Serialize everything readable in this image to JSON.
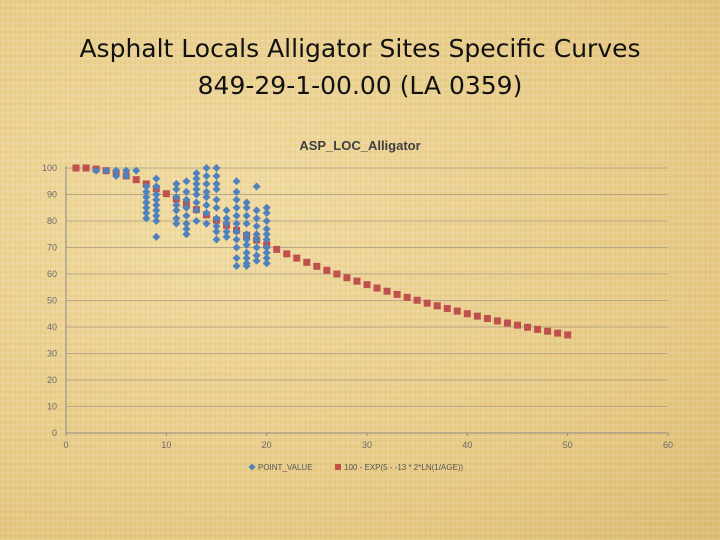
{
  "slide": {
    "title_line1": "Asphalt Locals Alligator Sites Specific Curves",
    "title_line2": "849-29-1-00.00 (LA 0359)"
  },
  "colors": {
    "point_value": "#4f81bd",
    "curve": "#c0504d",
    "grid": "#b9a888",
    "axis": "#8c8c8c"
  },
  "chart_data": {
    "type": "scatter",
    "title": "ASP_LOC_Alligator",
    "xlim": [
      0,
      60
    ],
    "ylim": [
      0,
      100
    ],
    "x_ticks": [
      0,
      10,
      20,
      30,
      40,
      50,
      60
    ],
    "y_ticks": [
      0,
      10,
      20,
      30,
      40,
      50,
      60,
      70,
      80,
      90,
      100
    ],
    "grid": true,
    "legend_position": "bottom",
    "series": [
      {
        "name": "POINT_VALUE",
        "marker": "diamond",
        "points": [
          [
            3,
            99
          ],
          [
            4,
            99
          ],
          [
            5,
            99
          ],
          [
            6,
            99
          ],
          [
            7,
            99
          ],
          [
            5,
            97
          ],
          [
            6,
            97
          ],
          [
            8,
            93
          ],
          [
            8,
            91
          ],
          [
            8,
            89
          ],
          [
            8,
            87
          ],
          [
            8,
            85
          ],
          [
            8,
            83
          ],
          [
            8,
            81
          ],
          [
            9,
            96
          ],
          [
            9,
            93
          ],
          [
            9,
            90
          ],
          [
            9,
            88
          ],
          [
            9,
            86
          ],
          [
            9,
            84
          ],
          [
            9,
            82
          ],
          [
            9,
            80
          ],
          [
            9,
            74
          ],
          [
            11,
            94
          ],
          [
            11,
            92
          ],
          [
            11,
            89
          ],
          [
            11,
            86
          ],
          [
            11,
            84
          ],
          [
            11,
            81
          ],
          [
            11,
            79
          ],
          [
            12,
            95
          ],
          [
            12,
            91
          ],
          [
            12,
            88
          ],
          [
            12,
            85
          ],
          [
            12,
            82
          ],
          [
            12,
            79
          ],
          [
            12,
            77
          ],
          [
            12,
            75
          ],
          [
            13,
            98
          ],
          [
            13,
            96
          ],
          [
            13,
            94
          ],
          [
            13,
            92
          ],
          [
            13,
            90
          ],
          [
            13,
            87
          ],
          [
            13,
            84
          ],
          [
            13,
            80
          ],
          [
            14,
            100
          ],
          [
            14,
            97
          ],
          [
            14,
            94
          ],
          [
            14,
            91
          ],
          [
            14,
            89
          ],
          [
            14,
            86
          ],
          [
            14,
            83
          ],
          [
            14,
            79
          ],
          [
            15,
            100
          ],
          [
            15,
            97
          ],
          [
            15,
            94
          ],
          [
            15,
            92
          ],
          [
            15,
            88
          ],
          [
            15,
            85
          ],
          [
            15,
            81
          ],
          [
            15,
            78
          ],
          [
            15,
            76
          ],
          [
            15,
            73
          ],
          [
            16,
            84
          ],
          [
            16,
            81
          ],
          [
            16,
            79
          ],
          [
            16,
            76
          ],
          [
            16,
            74
          ],
          [
            17,
            95
          ],
          [
            17,
            91
          ],
          [
            17,
            88
          ],
          [
            17,
            85
          ],
          [
            17,
            82
          ],
          [
            17,
            79
          ],
          [
            17,
            76
          ],
          [
            17,
            73
          ],
          [
            17,
            70
          ],
          [
            17,
            66
          ],
          [
            17,
            63
          ],
          [
            18,
            87
          ],
          [
            18,
            85
          ],
          [
            18,
            82
          ],
          [
            18,
            79
          ],
          [
            18,
            75
          ],
          [
            18,
            73
          ],
          [
            18,
            71
          ],
          [
            18,
            68
          ],
          [
            18,
            66
          ],
          [
            18,
            64
          ],
          [
            18,
            63
          ],
          [
            19,
            93
          ],
          [
            19,
            84
          ],
          [
            19,
            81
          ],
          [
            19,
            78
          ],
          [
            19,
            75
          ],
          [
            19,
            73
          ],
          [
            19,
            70
          ],
          [
            19,
            67
          ],
          [
            19,
            65
          ],
          [
            20,
            85
          ],
          [
            20,
            83
          ],
          [
            20,
            80
          ],
          [
            20,
            77
          ],
          [
            20,
            75
          ],
          [
            20,
            73
          ],
          [
            20,
            70
          ],
          [
            20,
            68
          ],
          [
            20,
            66
          ],
          [
            20,
            64
          ]
        ]
      },
      {
        "name": "100 - EXP(5 - -13 * 2*LN(1/AGE))",
        "marker": "square",
        "points": [
          [
            1,
            100
          ],
          [
            2,
            100
          ],
          [
            3,
            99.6
          ],
          [
            4,
            99
          ],
          [
            5,
            98.1
          ],
          [
            6,
            97
          ],
          [
            7,
            95.6
          ],
          [
            8,
            94
          ],
          [
            9,
            92.2
          ],
          [
            10,
            90.3
          ],
          [
            11,
            88.3
          ],
          [
            12,
            86.3
          ],
          [
            13,
            84.3
          ],
          [
            14,
            82.3
          ],
          [
            15,
            80.3
          ],
          [
            16,
            78.4
          ],
          [
            17,
            76.5
          ],
          [
            18,
            74.6
          ],
          [
            19,
            72.8
          ],
          [
            20,
            71
          ],
          [
            21,
            69.3
          ],
          [
            22,
            67.6
          ],
          [
            23,
            66
          ],
          [
            24,
            64.4
          ],
          [
            25,
            62.9
          ],
          [
            26,
            61.4
          ],
          [
            27,
            60
          ],
          [
            28,
            58.6
          ],
          [
            29,
            57.3
          ],
          [
            30,
            56
          ],
          [
            31,
            54.7
          ],
          [
            32,
            53.5
          ],
          [
            33,
            52.3
          ],
          [
            34,
            51.2
          ],
          [
            35,
            50.1
          ],
          [
            36,
            49
          ],
          [
            37,
            48
          ],
          [
            38,
            47
          ],
          [
            39,
            46
          ],
          [
            40,
            45
          ],
          [
            41,
            44.1
          ],
          [
            42,
            43.2
          ],
          [
            43,
            42.3
          ],
          [
            44,
            41.5
          ],
          [
            45,
            40.7
          ],
          [
            46,
            39.9
          ],
          [
            47,
            39.1
          ],
          [
            48,
            38.4
          ],
          [
            49,
            37.7
          ],
          [
            50,
            37
          ]
        ]
      }
    ]
  }
}
